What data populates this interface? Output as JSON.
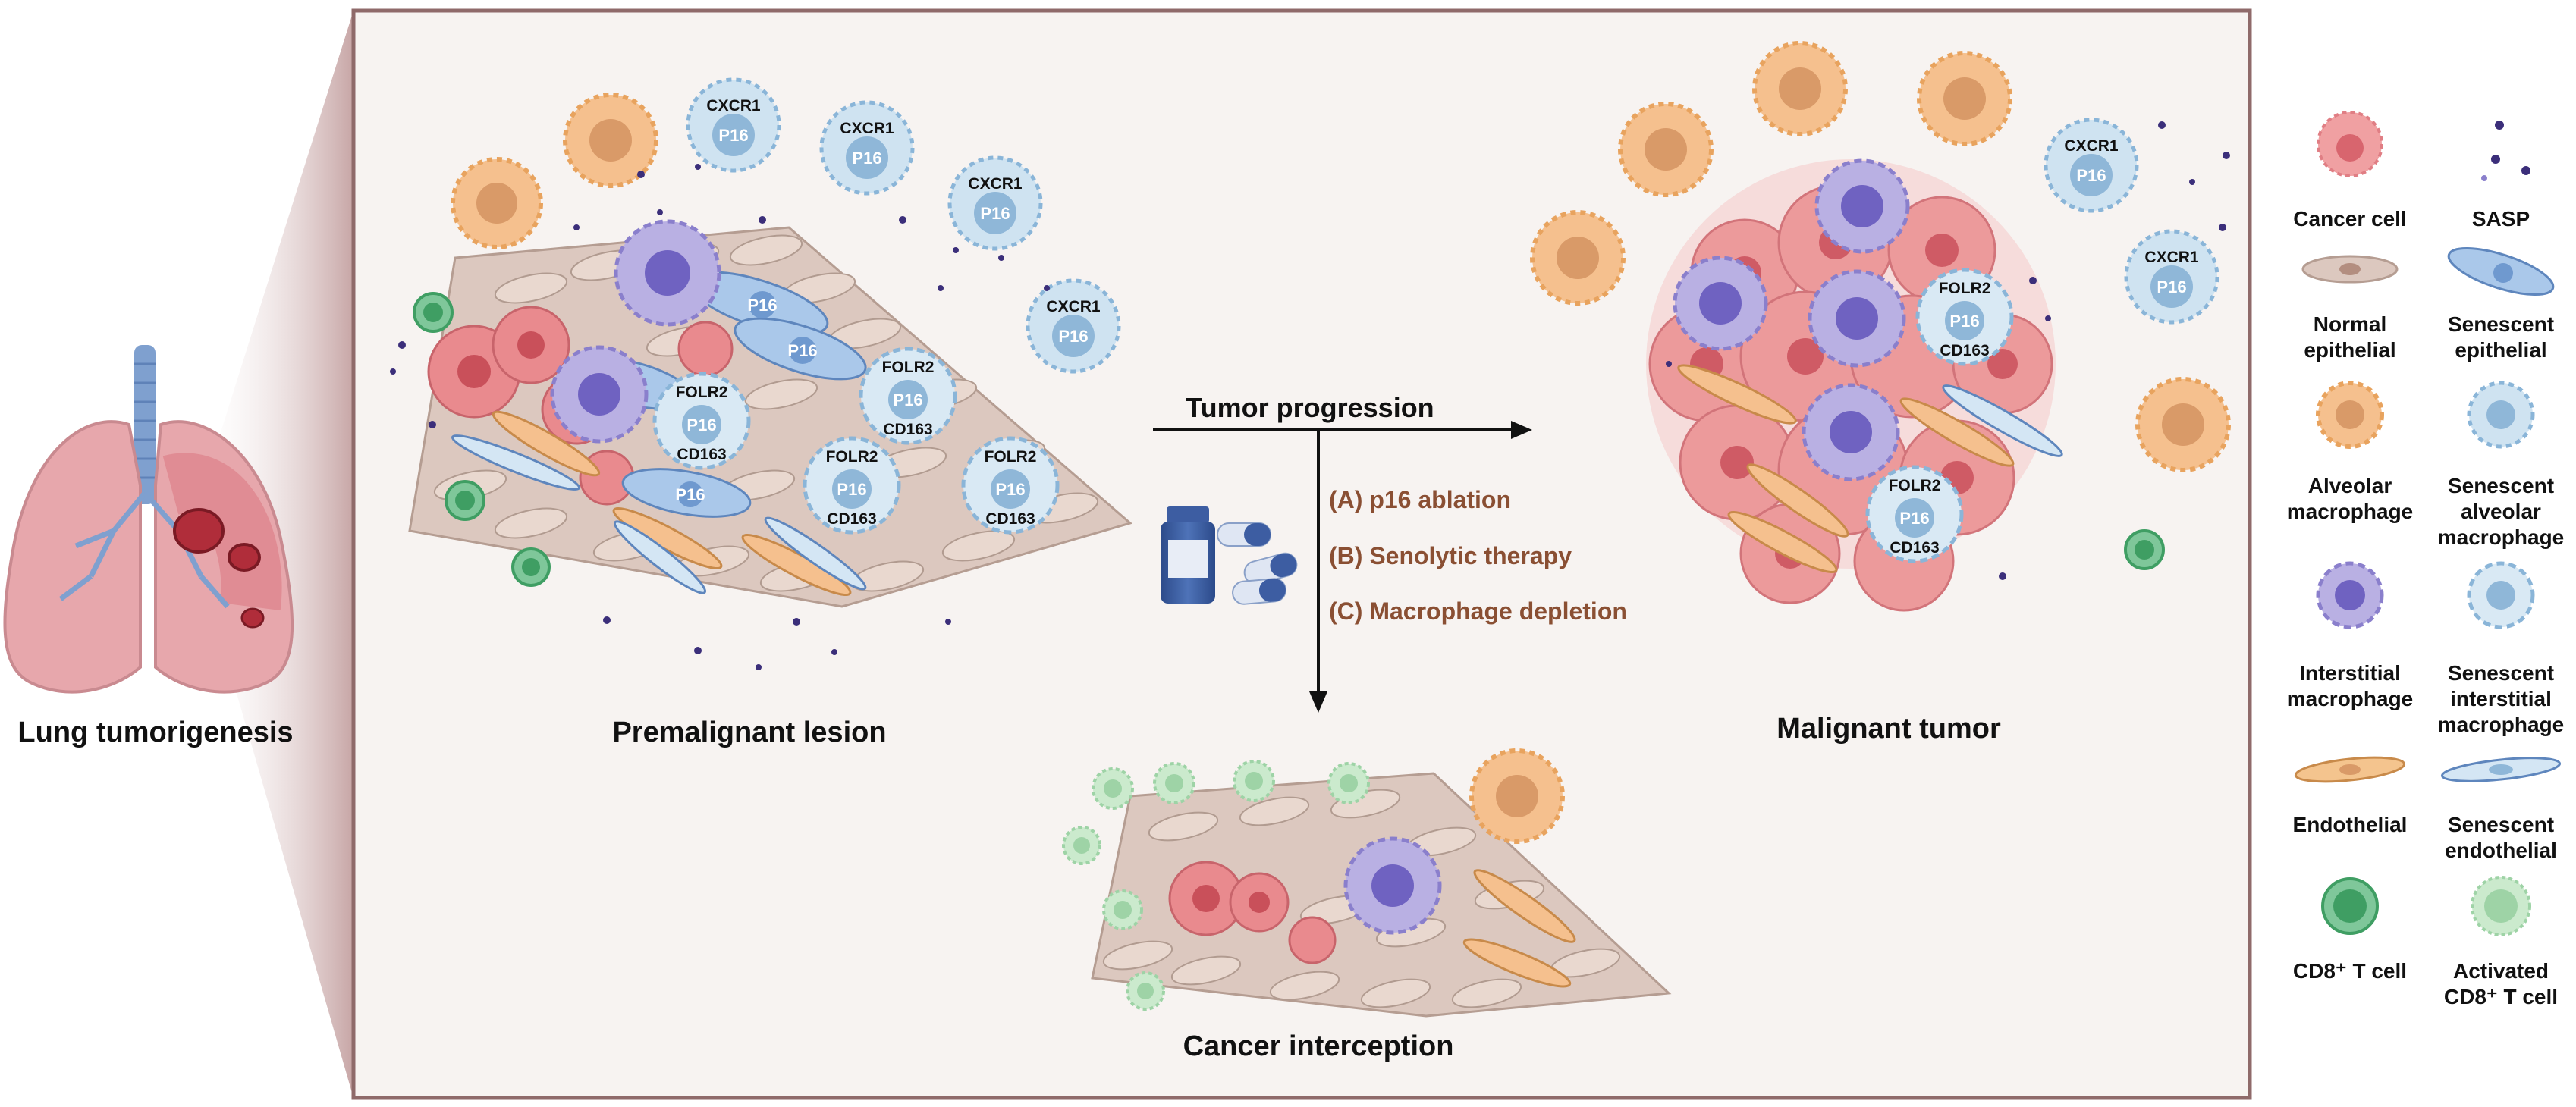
{
  "left": {
    "caption": "Lung tumorigenesis"
  },
  "panel": {
    "premalignant_caption": "Premalignant lesion",
    "malignant_caption": "Malignant tumor",
    "progression_label": "Tumor progression",
    "interception_caption": "Cancer interception",
    "treatments": [
      "(A) p16 ablation",
      "(B) Senolytic therapy",
      "(C) Macrophage depletion"
    ],
    "markers": {
      "cxcr1": "CXCR1",
      "p16": "P16",
      "folr2": "FOLR2",
      "cd163": "CD163"
    }
  },
  "legend": [
    {
      "label": [
        "Cancer cell"
      ],
      "icon": "cancer-cell-icon"
    },
    {
      "label": [
        "SASP"
      ],
      "icon": "sasp-icon"
    },
    {
      "label": [
        "Normal",
        "epithelial"
      ],
      "icon": "normal-epithelial-icon"
    },
    {
      "label": [
        "Senescent",
        "epithelial"
      ],
      "icon": "senescent-epithelial-icon"
    },
    {
      "label": [
        "Alveolar",
        "macrophage"
      ],
      "icon": "alveolar-macrophage-icon"
    },
    {
      "label": [
        "Senescent",
        "alveolar",
        "macrophage"
      ],
      "icon": "senescent-alveolar-macrophage-icon"
    },
    {
      "label": [
        "Interstitial",
        "macrophage"
      ],
      "icon": "interstitial-macrophage-icon"
    },
    {
      "label": [
        "Senescent",
        "interstitial",
        "macrophage"
      ],
      "icon": "senescent-interstitial-macrophage-icon"
    },
    {
      "label": [
        "Endothelial"
      ],
      "icon": "endothelial-icon"
    },
    {
      "label": [
        "Senescent",
        "endothelial"
      ],
      "icon": "senescent-endothelial-icon"
    },
    {
      "label": [
        "CD8⁺ T cell"
      ],
      "icon": "cd8-t-cell-icon"
    },
    {
      "label": [
        "Activated",
        "CD8⁺ T cell"
      ],
      "icon": "activated-cd8-t-cell-icon"
    }
  ],
  "colors": {
    "panel_bg": "#f7f3f1",
    "panel_border": "#8f6a6a",
    "cancer": "#f0a0a2",
    "epithelial": "#dcc8bf",
    "senescent_blue": "#bcd7ea",
    "alveolar": "#f5c08e",
    "interstitial": "#b9b0e3",
    "endothelial": "#f4c48e",
    "cd8": "#7fc79a",
    "cd8_active": "#cbeacd",
    "sasp": "#3b2e7a",
    "treatment_text": "#8a4f33"
  }
}
